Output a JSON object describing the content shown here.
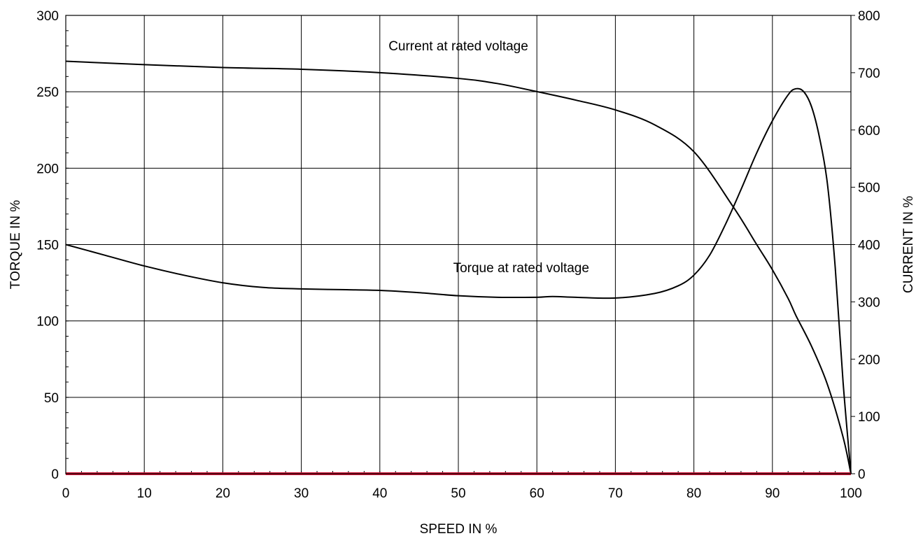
{
  "chart_data": {
    "type": "line",
    "title": "",
    "xlabel": "SPEED IN %",
    "ylabel": "TORQUE IN %",
    "y2label": "CURRENT IN %",
    "xlim": [
      0,
      100
    ],
    "ylim": [
      0,
      300
    ],
    "y2lim": [
      0,
      800
    ],
    "xticks": [
      "0",
      "10",
      "20",
      "30",
      "40",
      "50",
      "60",
      "70",
      "80",
      "90",
      "100"
    ],
    "yticks": [
      "0",
      "50",
      "100",
      "150",
      "200",
      "250",
      "300"
    ],
    "y2ticks": [
      "0",
      "100",
      "200",
      "300",
      "400",
      "500",
      "600",
      "700",
      "800"
    ],
    "grid": true,
    "baseline_color": "#cc1133",
    "series": [
      {
        "name": "Current at rated voltage",
        "axis": "right",
        "x": [
          0,
          10,
          20,
          30,
          40,
          50,
          55,
          60,
          65,
          70,
          75,
          80,
          85,
          88,
          90,
          92,
          93,
          95,
          97,
          99,
          100
        ],
        "values": [
          720,
          714,
          709,
          706,
          700,
          690,
          681,
          667,
          652,
          635,
          609,
          562,
          466,
          400,
          356,
          306,
          276,
          222,
          156,
          64,
          0
        ]
      },
      {
        "name": "Torque at rated voltage",
        "axis": "left",
        "x": [
          0,
          5,
          10,
          15,
          20,
          25,
          30,
          35,
          40,
          45,
          50,
          55,
          60,
          62,
          65,
          70,
          75,
          78,
          80,
          82,
          84,
          86,
          88,
          90,
          92,
          93,
          94,
          95,
          96,
          97,
          98,
          99,
          100
        ],
        "values": [
          150,
          143,
          136,
          130,
          125,
          122,
          121,
          120.5,
          120,
          118.5,
          116.5,
          115.5,
          115.5,
          116,
          115.5,
          115,
          118,
          123,
          130,
          143,
          163,
          186,
          210,
          231,
          248,
          252,
          250,
          240,
          220,
          190,
          135,
          60,
          0
        ]
      }
    ],
    "annotations": [
      {
        "text": "Current at rated voltage",
        "x": 50,
        "y_left": 277
      },
      {
        "text": "Torque at rated voltage",
        "x": 58,
        "y_left": 132
      }
    ]
  }
}
